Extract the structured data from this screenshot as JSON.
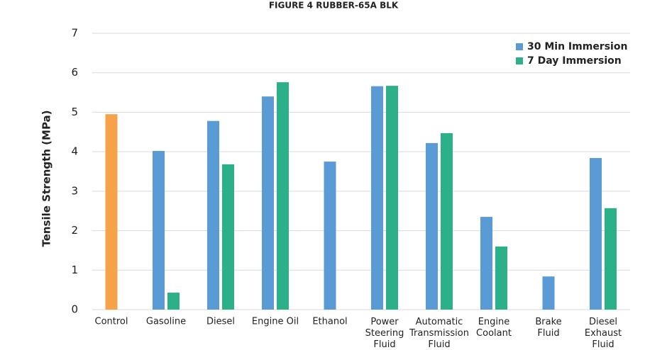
{
  "chart_data": {
    "type": "bar",
    "title": "FIGURE 4 RUBBER-65A BLK",
    "y_label": "Tensile Strength (MPa)",
    "categories": [
      "Control",
      "Gasoline",
      "Diesel",
      "Engine Oil",
      "Ethanol",
      "Power\nSteering\nFluid",
      "Automatic\nTransmission\nFluid",
      "Engine\nCoolant",
      "Brake\nFluid",
      "Diesel\nExhaust\nFluid"
    ],
    "series": [
      {
        "name": "30 Min Immersion",
        "color": "#5b9bd5",
        "point_colors": [
          "#f7a24b",
          null,
          null,
          null,
          null,
          null,
          null,
          null,
          null,
          null
        ],
        "values": [
          4.95,
          4.02,
          4.78,
          5.4,
          3.75,
          5.66,
          4.22,
          2.35,
          0.84,
          3.84
        ]
      },
      {
        "name": "7 Day Immersion",
        "color": "#2bb08a",
        "values": [
          null,
          0.43,
          3.68,
          5.76,
          null,
          5.67,
          4.47,
          1.6,
          null,
          2.57
        ]
      }
    ],
    "ylim": [
      0,
      7
    ],
    "yticks": [
      0,
      1,
      2,
      3,
      4,
      5,
      6,
      7
    ],
    "grid": true,
    "legend": "top-right"
  }
}
